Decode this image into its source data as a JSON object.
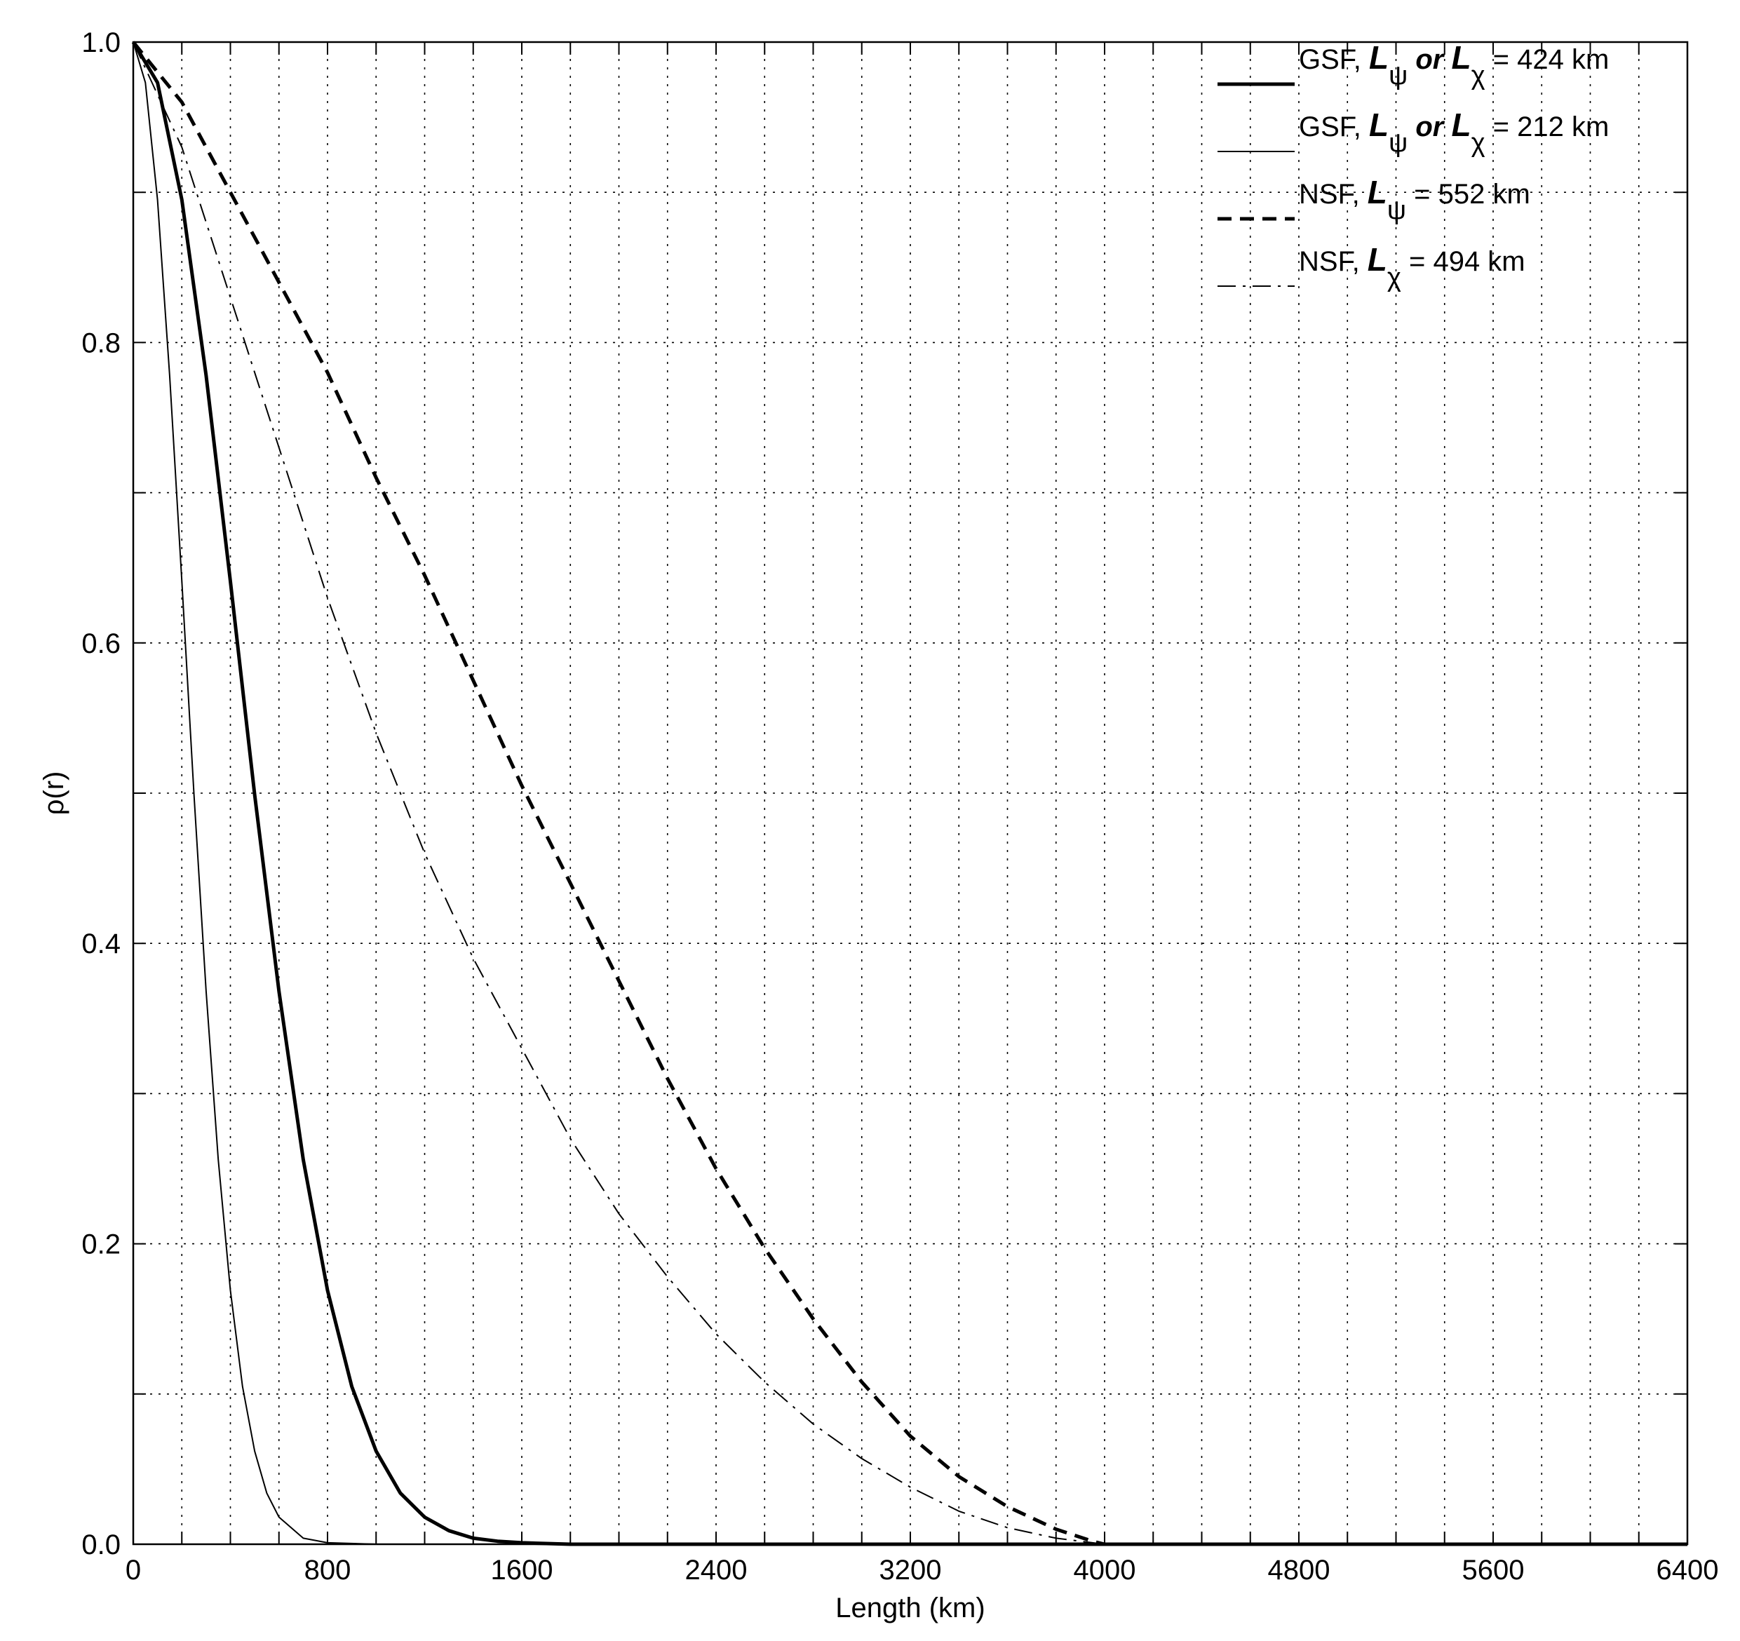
{
  "chart_data": {
    "type": "line",
    "xlabel": "Length (km)",
    "ylabel": "ρ(r)",
    "xlim": [
      0,
      6400
    ],
    "ylim": [
      0,
      1
    ],
    "x_ticks": [
      0,
      800,
      1600,
      2400,
      3200,
      4000,
      4800,
      5600,
      6400
    ],
    "x_tick_labels": [
      "0",
      "800",
      "1600",
      "2400",
      "3200",
      "4000",
      "4800",
      "5600",
      "6400"
    ],
    "y_ticks": [
      0,
      0.2,
      0.4,
      0.6,
      0.8,
      1.0
    ],
    "y_tick_labels": [
      "0.0",
      "0.2",
      "0.4",
      "0.6",
      "0.8",
      "1.0"
    ],
    "x_minor_grid_step": 200,
    "y_minor_grid_step": 0.1,
    "grid": true,
    "legend_position": "top-right",
    "series": [
      {
        "name": "GSF, Lψ or Lχ = 424 km",
        "style": "solid-thick",
        "x": [
          0,
          100,
          200,
          300,
          400,
          500,
          600,
          700,
          800,
          900,
          1000,
          1100,
          1200,
          1300,
          1400,
          1500,
          1600,
          1800,
          2000,
          6400
        ],
        "y": [
          1.0,
          0.973,
          0.895,
          0.778,
          0.641,
          0.499,
          0.368,
          0.256,
          0.169,
          0.105,
          0.062,
          0.034,
          0.018,
          0.009,
          0.004,
          0.002,
          0.001,
          0.0,
          0.0,
          0.0
        ]
      },
      {
        "name": "GSF, Lψ or Lχ = 212 km",
        "style": "solid-thin",
        "x": [
          0,
          50,
          100,
          150,
          200,
          250,
          300,
          350,
          400,
          450,
          500,
          550,
          600,
          700,
          800,
          1000,
          6400
        ],
        "y": [
          1.0,
          0.973,
          0.895,
          0.778,
          0.641,
          0.499,
          0.368,
          0.256,
          0.169,
          0.105,
          0.062,
          0.034,
          0.018,
          0.004,
          0.001,
          0.0,
          0.0
        ]
      },
      {
        "name": "NSF, Lψ = 552 km",
        "style": "dashed-thick",
        "x": [
          0,
          200,
          400,
          600,
          800,
          1000,
          1200,
          1400,
          1600,
          1800,
          2000,
          2200,
          2400,
          2600,
          2800,
          3000,
          3200,
          3400,
          3600,
          3800,
          3950,
          4000,
          6400
        ],
        "y": [
          1.0,
          0.96,
          0.9,
          0.84,
          0.78,
          0.71,
          0.645,
          0.575,
          0.505,
          0.44,
          0.375,
          0.31,
          0.25,
          0.197,
          0.15,
          0.108,
          0.072,
          0.045,
          0.025,
          0.01,
          0.002,
          0.0,
          0.0
        ]
      },
      {
        "name": "NSF, Lχ = 494 km",
        "style": "dashdot-thin",
        "x": [
          0,
          200,
          400,
          600,
          800,
          1000,
          1200,
          1400,
          1600,
          1800,
          2000,
          2200,
          2400,
          2600,
          2800,
          3000,
          3200,
          3400,
          3600,
          3800,
          3950,
          4000,
          6400
        ],
        "y": [
          1.0,
          0.93,
          0.83,
          0.73,
          0.63,
          0.54,
          0.46,
          0.39,
          0.33,
          0.27,
          0.22,
          0.178,
          0.14,
          0.108,
          0.08,
          0.057,
          0.038,
          0.022,
          0.011,
          0.004,
          0.001,
          0.0,
          0.0
        ]
      }
    ],
    "legend": [
      {
        "prefix": "GSF, ",
        "sym1": "L",
        "sub1": "ψ",
        "or": "or",
        "sym2": "L",
        "sub2": "χ",
        "suffix": "= 424 km"
      },
      {
        "prefix": "GSF, ",
        "sym1": "L",
        "sub1": "ψ",
        "or": "or",
        "sym2": "L",
        "sub2": "χ",
        "suffix": "= 212 km"
      },
      {
        "prefix": "NSF, ",
        "sym1": "L",
        "sub1": "ψ",
        "suffix": "= 552 km"
      },
      {
        "prefix": "NSF, ",
        "sym1": "L",
        "sub1": "χ",
        "suffix": "= 494 km"
      }
    ]
  }
}
